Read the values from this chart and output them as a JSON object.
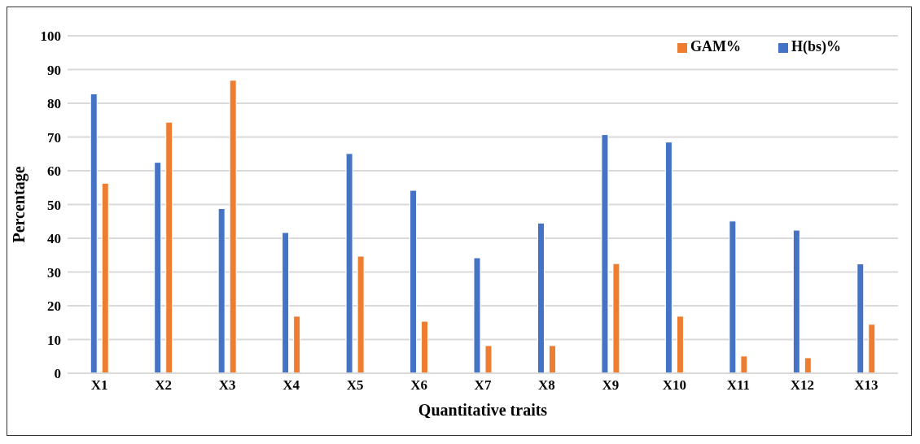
{
  "chart_data": {
    "type": "bar",
    "xlabel": "Quantitative traits",
    "ylabel": "Percentage",
    "categories": [
      "X1",
      "X2",
      "X3",
      "X4",
      "X5",
      "X6",
      "X7",
      "X8",
      "X9",
      "X10",
      "X11",
      "X12",
      "X13"
    ],
    "series": [
      {
        "name": "H(bs)%",
        "color": "#4472c4",
        "values": [
          82.8,
          62.5,
          48.8,
          41.7,
          65.1,
          54.2,
          34.2,
          44.5,
          70.7,
          68.5,
          45.1,
          42.4,
          32.4
        ]
      },
      {
        "name": "GAM%",
        "color": "#ed7d31",
        "values": [
          56.3,
          74.4,
          86.8,
          16.9,
          34.7,
          15.4,
          8.2,
          8.2,
          32.5,
          16.9,
          5.1,
          4.6,
          14.5
        ]
      }
    ],
    "ylim": [
      0,
      100
    ],
    "yticks": [
      0,
      10,
      20,
      30,
      40,
      50,
      60,
      70,
      80,
      90,
      100
    ],
    "grid": "y",
    "legend": "top right"
  }
}
